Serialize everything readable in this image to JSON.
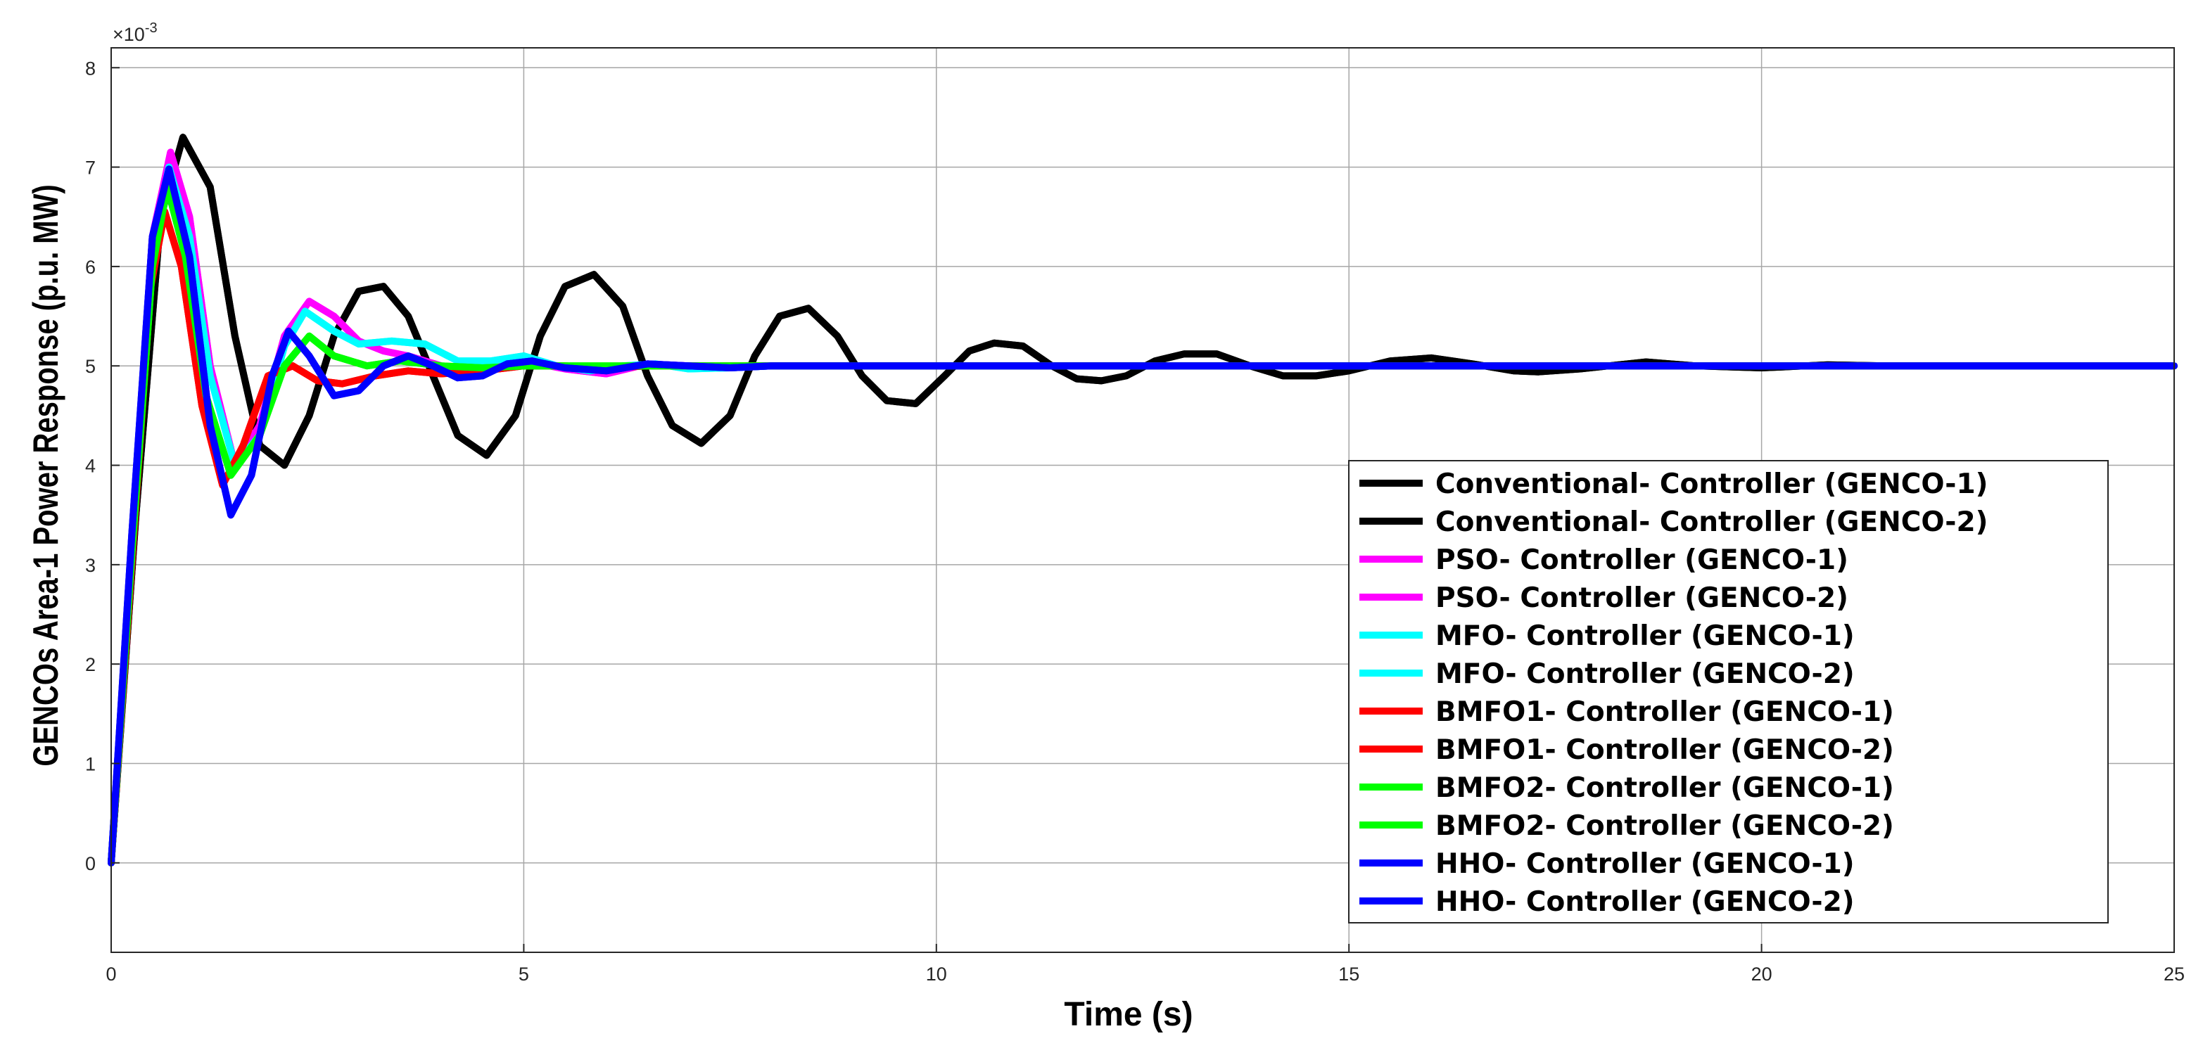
{
  "chart_data": {
    "type": "line",
    "xlabel": "Time (s)",
    "ylabel": "GENCOs Area-1 Power Response (p.u. MW)",
    "y_exponent_label": "×10",
    "y_exponent_power": "-3",
    "xlim": [
      0,
      25
    ],
    "ylim": [
      -0.9,
      8.2
    ],
    "x_ticks": [
      0,
      5,
      10,
      15,
      20,
      25
    ],
    "y_ticks": [
      0,
      1,
      2,
      3,
      4,
      5,
      6,
      7,
      8
    ],
    "grid": true,
    "legend_position": "bottom-right",
    "series": [
      {
        "name": "Conventional- Controller (GENCO-1)",
        "color": "#000000",
        "x": [
          0,
          0.3,
          0.6,
          0.87,
          1.2,
          1.5,
          1.8,
          2.1,
          2.4,
          2.7,
          3.0,
          3.3,
          3.6,
          3.9,
          4.2,
          4.55,
          4.9,
          5.2,
          5.5,
          5.85,
          6.2,
          6.5,
          6.8,
          7.15,
          7.5,
          7.8,
          8.1,
          8.45,
          8.8,
          9.1,
          9.4,
          9.75,
          10.1,
          10.4,
          10.7,
          11.05,
          11.4,
          11.7,
          12.0,
          12.3,
          12.65,
          13.0,
          13.4,
          13.8,
          14.2,
          14.6,
          15.0,
          15.5,
          16.0,
          16.5,
          17.0,
          17.3,
          17.8,
          18.6,
          19.2,
          20.0,
          20.8,
          21.5,
          22.5,
          23.5,
          25.0
        ],
        "y": [
          0,
          3.5,
          6.5,
          7.3,
          6.8,
          5.3,
          4.2,
          4.0,
          4.5,
          5.3,
          5.75,
          5.8,
          5.5,
          4.9,
          4.3,
          4.1,
          4.5,
          5.3,
          5.8,
          5.92,
          5.6,
          4.9,
          4.4,
          4.22,
          4.5,
          5.1,
          5.5,
          5.58,
          5.3,
          4.9,
          4.65,
          4.62,
          4.9,
          5.15,
          5.23,
          5.2,
          5.0,
          4.87,
          4.85,
          4.9,
          5.05,
          5.12,
          5.12,
          5.0,
          4.9,
          4.9,
          4.95,
          5.05,
          5.08,
          5.02,
          4.95,
          4.94,
          4.97,
          5.04,
          5.0,
          4.98,
          5.01,
          5.0,
          5.0,
          5.0,
          5.0
        ]
      },
      {
        "name": "Conventional- Controller (GENCO-2)",
        "color": "#000000",
        "x": [
          0,
          0.3,
          0.6,
          0.87,
          1.2,
          1.5,
          1.8,
          2.1,
          2.4,
          2.7,
          3.0,
          3.3,
          3.6,
          3.9,
          4.2,
          4.55,
          4.9,
          5.2,
          5.5,
          5.85,
          6.2,
          6.5,
          6.8,
          7.15,
          7.5,
          7.8,
          8.1,
          8.45,
          8.8,
          9.1,
          9.4,
          9.75,
          10.1,
          10.4,
          10.7,
          11.05,
          11.4,
          11.7,
          12.0,
          12.3,
          12.65,
          13.0,
          13.4,
          13.8,
          14.2,
          14.6,
          15.0,
          15.5,
          16.0,
          16.5,
          17.0,
          17.3,
          17.8,
          18.6,
          19.2,
          20.0,
          20.8,
          21.5,
          22.5,
          23.5,
          25.0
        ],
        "y": [
          0,
          3.5,
          6.5,
          7.3,
          6.8,
          5.3,
          4.2,
          4.0,
          4.5,
          5.3,
          5.75,
          5.8,
          5.5,
          4.9,
          4.3,
          4.1,
          4.5,
          5.3,
          5.8,
          5.92,
          5.6,
          4.9,
          4.4,
          4.22,
          4.5,
          5.1,
          5.5,
          5.58,
          5.3,
          4.9,
          4.65,
          4.62,
          4.9,
          5.15,
          5.23,
          5.2,
          5.0,
          4.87,
          4.85,
          4.9,
          5.05,
          5.12,
          5.12,
          5.0,
          4.9,
          4.9,
          4.95,
          5.05,
          5.08,
          5.02,
          4.95,
          4.94,
          4.97,
          5.04,
          5.0,
          4.98,
          5.01,
          5.0,
          5.0,
          5.0,
          5.0
        ]
      },
      {
        "name": "PSO- Controller (GENCO-1)",
        "color": "#ff00ff",
        "x": [
          0,
          0.25,
          0.5,
          0.72,
          0.95,
          1.2,
          1.5,
          1.8,
          2.1,
          2.4,
          2.7,
          3.0,
          3.3,
          3.6,
          4.0,
          4.5,
          5.0,
          5.5,
          6.0,
          6.5,
          7.0,
          7.5,
          8.0,
          9.0,
          10.0,
          15.0,
          20.0,
          25.0
        ],
        "y": [
          0,
          3.2,
          6.3,
          7.15,
          6.5,
          5.0,
          4.0,
          4.4,
          5.3,
          5.65,
          5.5,
          5.25,
          5.15,
          5.1,
          5.0,
          4.95,
          5.05,
          4.97,
          4.92,
          5.02,
          5.0,
          4.98,
          5.0,
          5.0,
          5.0,
          5.0,
          5.0,
          5.0
        ]
      },
      {
        "name": "PSO- Controller (GENCO-2)",
        "color": "#ff00ff",
        "x": [
          0,
          0.25,
          0.5,
          0.72,
          0.95,
          1.2,
          1.5,
          1.8,
          2.1,
          2.4,
          2.7,
          3.0,
          3.3,
          3.6,
          4.0,
          4.5,
          5.0,
          5.5,
          6.0,
          6.5,
          7.0,
          7.5,
          8.0,
          9.0,
          10.0,
          15.0,
          20.0,
          25.0
        ],
        "y": [
          0,
          3.2,
          6.3,
          7.15,
          6.5,
          5.0,
          4.0,
          4.4,
          5.3,
          5.65,
          5.5,
          5.25,
          5.15,
          5.1,
          5.0,
          4.95,
          5.05,
          4.97,
          4.92,
          5.02,
          5.0,
          4.98,
          5.0,
          5.0,
          5.0,
          5.0,
          5.0,
          5.0
        ]
      },
      {
        "name": "MFO- Controller (GENCO-1)",
        "color": "#00ffff",
        "x": [
          0,
          0.25,
          0.5,
          0.7,
          0.95,
          1.2,
          1.5,
          1.8,
          2.1,
          2.35,
          2.7,
          3.0,
          3.4,
          3.8,
          4.2,
          4.6,
          5.0,
          5.4,
          5.8,
          6.2,
          6.6,
          7.0,
          7.5,
          8.0,
          9.0,
          10.0,
          15.0,
          20.0,
          25.0
        ],
        "y": [
          0,
          3.2,
          6.2,
          7.0,
          6.3,
          4.9,
          4.0,
          4.3,
          5.2,
          5.55,
          5.35,
          5.22,
          5.25,
          5.22,
          5.05,
          5.05,
          5.1,
          5.0,
          4.95,
          5.0,
          5.02,
          4.97,
          4.98,
          5.0,
          5.0,
          5.0,
          5.0,
          5.0,
          5.0
        ]
      },
      {
        "name": "MFO- Controller (GENCO-2)",
        "color": "#00ffff",
        "x": [
          0,
          0.25,
          0.5,
          0.7,
          0.95,
          1.2,
          1.5,
          1.8,
          2.1,
          2.35,
          2.7,
          3.0,
          3.4,
          3.8,
          4.2,
          4.6,
          5.0,
          5.4,
          5.8,
          6.2,
          6.6,
          7.0,
          7.5,
          8.0,
          9.0,
          10.0,
          15.0,
          20.0,
          25.0
        ],
        "y": [
          0,
          3.2,
          6.2,
          7.0,
          6.3,
          4.9,
          4.0,
          4.3,
          5.2,
          5.55,
          5.35,
          5.22,
          5.25,
          5.22,
          5.05,
          5.05,
          5.1,
          5.0,
          4.95,
          5.0,
          5.02,
          4.97,
          4.98,
          5.0,
          5.0,
          5.0,
          5.0,
          5.0,
          5.0
        ]
      },
      {
        "name": "BMFO1- Controller (GENCO-1)",
        "color": "#ff0000",
        "x": [
          0,
          0.25,
          0.48,
          0.65,
          0.85,
          1.1,
          1.35,
          1.6,
          1.9,
          2.2,
          2.5,
          2.8,
          3.2,
          3.6,
          4.0,
          4.5,
          5.0,
          5.5,
          6.0,
          6.5,
          7.0,
          8.0,
          10.0,
          15.0,
          20.0,
          25.0
        ],
        "y": [
          0,
          3.0,
          5.8,
          6.55,
          6.0,
          4.6,
          3.8,
          4.2,
          4.9,
          5.0,
          4.85,
          4.82,
          4.9,
          4.95,
          4.92,
          4.95,
          5.0,
          5.0,
          4.98,
          5.0,
          5.0,
          5.0,
          5.0,
          5.0,
          5.0,
          5.0
        ]
      },
      {
        "name": "BMFO1- Controller (GENCO-2)",
        "color": "#ff0000",
        "x": [
          0,
          0.25,
          0.48,
          0.65,
          0.85,
          1.1,
          1.35,
          1.6,
          1.9,
          2.2,
          2.5,
          2.8,
          3.2,
          3.6,
          4.0,
          4.5,
          5.0,
          5.5,
          6.0,
          6.5,
          7.0,
          8.0,
          10.0,
          15.0,
          20.0,
          25.0
        ],
        "y": [
          0,
          3.0,
          5.8,
          6.55,
          6.0,
          4.6,
          3.8,
          4.2,
          4.9,
          5.0,
          4.85,
          4.82,
          4.9,
          4.95,
          4.92,
          4.95,
          5.0,
          5.0,
          4.98,
          5.0,
          5.0,
          5.0,
          5.0,
          5.0,
          5.0,
          5.0
        ]
      },
      {
        "name": "BMFO2- Controller (GENCO-1)",
        "color": "#00ff00",
        "x": [
          0,
          0.25,
          0.5,
          0.68,
          0.9,
          1.15,
          1.45,
          1.8,
          2.1,
          2.4,
          2.7,
          3.1,
          3.5,
          4.0,
          4.5,
          5.0,
          5.5,
          6.0,
          7.0,
          10.0,
          15.0,
          20.0,
          25.0
        ],
        "y": [
          0,
          3.1,
          6.0,
          6.8,
          6.1,
          4.7,
          3.9,
          4.3,
          5.0,
          5.3,
          5.1,
          5.0,
          5.05,
          5.0,
          4.98,
          5.0,
          5.0,
          5.0,
          5.0,
          5.0,
          5.0,
          5.0,
          5.0
        ]
      },
      {
        "name": "BMFO2- Controller (GENCO-2)",
        "color": "#00ff00",
        "x": [
          0,
          0.25,
          0.5,
          0.68,
          0.9,
          1.15,
          1.45,
          1.8,
          2.1,
          2.4,
          2.7,
          3.1,
          3.5,
          4.0,
          4.5,
          5.0,
          5.5,
          6.0,
          7.0,
          10.0,
          15.0,
          20.0,
          25.0
        ],
        "y": [
          0,
          3.1,
          6.0,
          6.8,
          6.1,
          4.7,
          3.9,
          4.3,
          5.0,
          5.3,
          5.1,
          5.0,
          5.05,
          5.0,
          4.98,
          5.0,
          5.0,
          5.0,
          5.0,
          5.0,
          5.0,
          5.0,
          5.0
        ]
      },
      {
        "name": "HHO- Controller (GENCO-1)",
        "color": "#0000ff",
        "x": [
          0,
          0.25,
          0.5,
          0.7,
          0.95,
          1.2,
          1.45,
          1.7,
          1.95,
          2.15,
          2.4,
          2.7,
          3.0,
          3.3,
          3.6,
          3.9,
          4.2,
          4.5,
          4.8,
          5.1,
          5.5,
          6.0,
          6.5,
          7.0,
          7.5,
          8.0,
          9.0,
          10.0,
          15.0,
          20.0,
          25.0
        ],
        "y": [
          0,
          3.3,
          6.3,
          6.98,
          6.1,
          4.4,
          3.5,
          3.9,
          4.9,
          5.35,
          5.1,
          4.7,
          4.75,
          5.0,
          5.1,
          5.0,
          4.88,
          4.9,
          5.02,
          5.05,
          4.98,
          4.95,
          5.02,
          5.0,
          4.98,
          5.0,
          5.0,
          5.0,
          5.0,
          5.0,
          5.0
        ]
      },
      {
        "name": "HHO- Controller (GENCO-2)",
        "color": "#0000ff",
        "x": [
          0,
          0.25,
          0.5,
          0.7,
          0.95,
          1.2,
          1.45,
          1.7,
          1.95,
          2.15,
          2.4,
          2.7,
          3.0,
          3.3,
          3.6,
          3.9,
          4.2,
          4.5,
          4.8,
          5.1,
          5.5,
          6.0,
          6.5,
          7.0,
          7.5,
          8.0,
          9.0,
          10.0,
          15.0,
          20.0,
          25.0
        ],
        "y": [
          0,
          3.3,
          6.3,
          6.98,
          6.1,
          4.4,
          3.5,
          3.9,
          4.9,
          5.35,
          5.1,
          4.7,
          4.75,
          5.0,
          5.1,
          5.0,
          4.88,
          4.9,
          5.02,
          5.05,
          4.98,
          4.95,
          5.02,
          5.0,
          4.98,
          5.0,
          5.0,
          5.0,
          5.0,
          5.0,
          5.0
        ]
      }
    ]
  }
}
